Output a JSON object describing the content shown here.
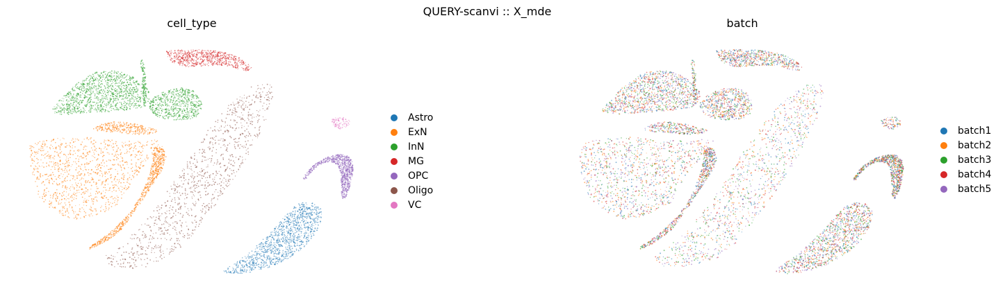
{
  "figure": {
    "suptitle": "QUERY-scanvi :: X_mde"
  },
  "chart_data": [
    {
      "type": "scatter",
      "title": "cell_type",
      "xlabel": "",
      "ylabel": "",
      "grid": false,
      "axes_visible": false,
      "legend_placement": "right",
      "legend": [
        {
          "label": "Astro",
          "color": "#1f77b4"
        },
        {
          "label": "ExN",
          "color": "#ff7f0e"
        },
        {
          "label": "InN",
          "color": "#2ca02c"
        },
        {
          "label": "MG",
          "color": "#d62728"
        },
        {
          "label": "OPC",
          "color": "#9467bd"
        },
        {
          "label": "Oligo",
          "color": "#8c564b"
        },
        {
          "label": "VC",
          "color": "#e377c2"
        }
      ]
    },
    {
      "type": "scatter",
      "title": "batch",
      "xlabel": "",
      "ylabel": "",
      "grid": false,
      "axes_visible": false,
      "legend_placement": "right",
      "legend": [
        {
          "label": "batch1",
          "color": "#1f77b4"
        },
        {
          "label": "batch2",
          "color": "#ff7f0e"
        },
        {
          "label": "batch3",
          "color": "#2ca02c"
        },
        {
          "label": "batch4",
          "color": "#d62728"
        },
        {
          "label": "batch5",
          "color": "#9467bd"
        }
      ]
    }
  ]
}
